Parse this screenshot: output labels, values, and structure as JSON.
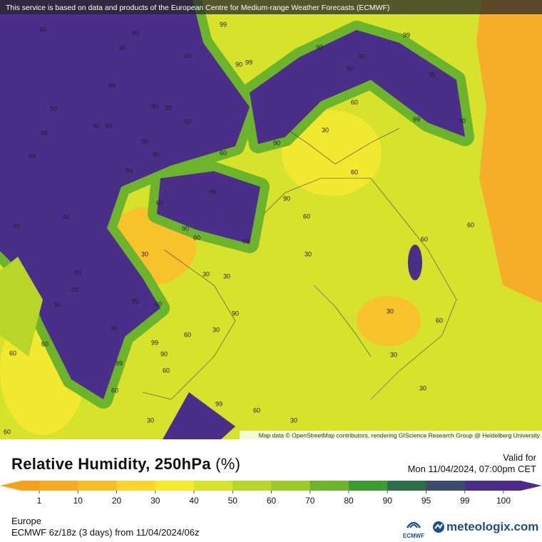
{
  "attribution_top": "This service is based on data and products of the European Centre for Medium-range Weather Forecasts (ECMWF)",
  "map_attribution": "Map data © OpenStreetMap contributors, rendering GIScience Research Group @ Heidelberg University",
  "title": "Relative Humidity, 250hPa",
  "unit": "(%)",
  "valid_label": "Valid for",
  "valid_time": "Mon 11/04/2024, 07:00pm CET",
  "legend": {
    "ticks": [
      1,
      10,
      20,
      30,
      40,
      50,
      60,
      70,
      80,
      90,
      95,
      99,
      100
    ],
    "colors": [
      "#f6a01c",
      "#f7ab22",
      "#f9bd28",
      "#fbd42d",
      "#f6ea2f",
      "#d6e22c",
      "#b8d52a",
      "#9bca2a",
      "#6cb42c",
      "#3a9d2e",
      "#2e6d47",
      "#3b4c6c",
      "#4a2e8a",
      "#4d2a8c"
    ]
  },
  "region": "Europe",
  "model": "ECMWF 6z/18z (3 days) from 11/04/2024/06z",
  "brand_ecmwf": "ECMWF",
  "brand": "meteologix.com",
  "contour_labels": [
    "90",
    "90",
    "99",
    "60",
    "90",
    "90",
    "99",
    "99",
    "90",
    "99",
    "99",
    "99",
    "99",
    "90",
    "90",
    "99",
    "90",
    "99",
    "99",
    "90",
    "90",
    "99",
    "90",
    "60",
    "90",
    "30",
    "60",
    "99",
    "90",
    "90",
    "99",
    "60",
    "90",
    "60",
    "90",
    "60",
    "99",
    "60",
    "90",
    "90",
    "60",
    "60",
    "30",
    "30",
    "30",
    "30",
    "99",
    "60",
    "99",
    "60",
    "30",
    "90",
    "30",
    "60",
    "90",
    "30",
    "60",
    "99",
    "90",
    "60",
    "60",
    "30",
    "99",
    "60",
    "60",
    "30",
    "99",
    "60",
    "30",
    "30",
    "60"
  ]
}
